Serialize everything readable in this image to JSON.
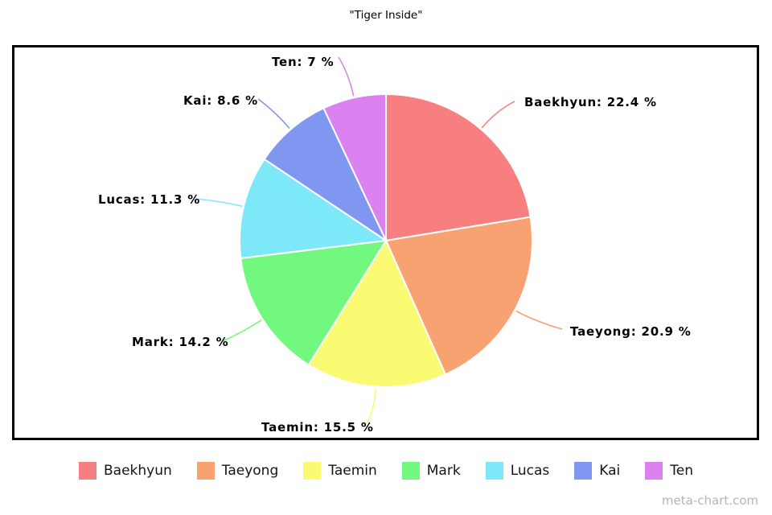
{
  "title": "\"Tiger Inside\"",
  "watermark": "meta-chart.com",
  "chart_data": {
    "type": "pie",
    "title": "\"Tiger Inside\"",
    "legend_position": "bottom",
    "start_angle_deg": 0,
    "direction": "clockwise",
    "slices": [
      {
        "name": "Baekhyun",
        "value": 22.4,
        "label": "Baekhyun: 22.4 %",
        "color": "#F87F7F"
      },
      {
        "name": "Taeyong",
        "value": 20.9,
        "label": "Taeyong: 20.9 %",
        "color": "#F8A272"
      },
      {
        "name": "Taemin",
        "value": 15.5,
        "label": "Taemin: 15.5 %",
        "color": "#FAFA73"
      },
      {
        "name": "Mark",
        "value": 14.2,
        "label": "Mark: 14.2 %",
        "color": "#73F87F"
      },
      {
        "name": "Lucas",
        "value": 11.3,
        "label": "Lucas: 11.3 %",
        "color": "#7DE9F8"
      },
      {
        "name": "Kai",
        "value": 8.6,
        "label": "Kai: 8.6 %",
        "color": "#8097F2"
      },
      {
        "name": "Ten",
        "value": 7,
        "label": "Ten: 7 %",
        "color": "#DC82F0"
      }
    ]
  }
}
